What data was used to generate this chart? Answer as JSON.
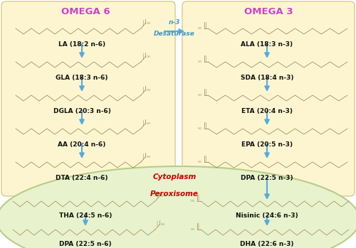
{
  "fig_width": 5.0,
  "fig_height": 3.49,
  "dpi": 100,
  "bg_color": "#ffffff",
  "cytoplasm_box_color": "#fdf5d0",
  "peroxisome_box_color": "#e8f2cc",
  "peroxisome_edge_color": "#b8cc88",
  "box_edge_color": "#d8cc88",
  "omega6_title": "OMEGA 6",
  "omega3_title": "OMEGA 3",
  "title_color": "#cc44cc",
  "arrow_color": "#55aadd",
  "n3_text_line1": "n-3",
  "n3_text_line2": "Desaturase",
  "n3_color": "#4499cc",
  "cytoplasm_text": "Cytoplasm",
  "cytoplasm_color": "#cc0000",
  "peroxisome_text": "Peroxisome",
  "peroxisome_color": "#cc0000",
  "omega6_compounds": [
    "LA (18:2 n-6)",
    "GLA (18:3 n-6)",
    "DGLA (20:3 n-6)",
    "AA (20:4 n-6)",
    "DTA (22:4 n-6)"
  ],
  "omega3_compounds": [
    "ALA (18:3 n-3)",
    "SDA (18:4 n-3)",
    "ETA (20:4 n-3)",
    "EPA (20:5 n-3)",
    "DPA (22:5 n-3)"
  ],
  "omega6_bottom": [
    "THA (24:5 n-6)",
    "DPA (22:5 n-6)"
  ],
  "omega3_bottom": [
    "Nisinic (24:6 n-3)",
    "DHA (22:6 n-3)"
  ],
  "struct_color": "#998855",
  "label_color": "#111111",
  "label_fontsize": 6.5,
  "title_fontsize": 9.5
}
